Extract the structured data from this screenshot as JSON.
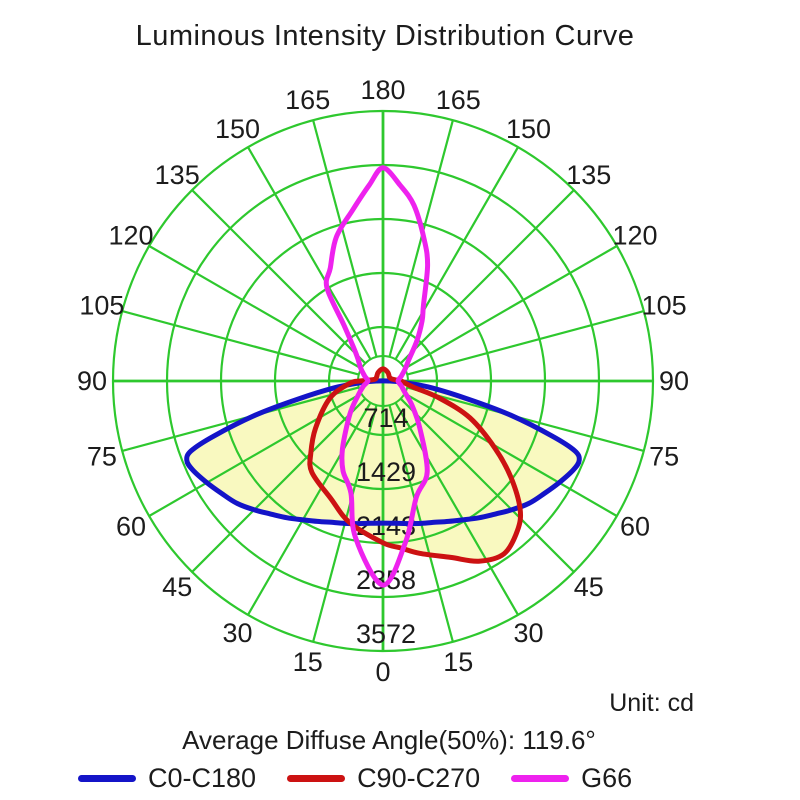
{
  "title": "Luminous Intensity Distribution Curve",
  "unit_label": "Unit: cd",
  "average_note": "Average Diffuse Angle(50%): 119.6°",
  "chart_data": {
    "type": "polar-line",
    "title": "Luminous Intensity Distribution Curve",
    "unit": "cd",
    "angle_convention": "0 deg at bottom (nadir), 90 deg horizontal both sides, 180 deg at top; positive angles = right half, negative = left half",
    "angle_tick_labels": [
      "0",
      "15",
      "30",
      "45",
      "60",
      "75",
      "90",
      "105",
      "120",
      "135",
      "150",
      "165",
      "180"
    ],
    "radial_ticks": [
      "714",
      "1429",
      "2143",
      "2858",
      "3572"
    ],
    "radial_tick_values": [
      714,
      1429,
      2143,
      2858,
      3572
    ],
    "radial_max": 3572,
    "grid_color": "#2ec82e",
    "fill_color": "#f9f9c0",
    "text_color": "#1c1c1c",
    "series": [
      {
        "name": "C0-C180",
        "color": "#1414c8",
        "filled": true,
        "points": [
          [
            -90,
            80
          ],
          [
            -86,
            280
          ],
          [
            -82,
            650
          ],
          [
            -78,
            1150
          ],
          [
            -75,
            1750
          ],
          [
            -72,
            2350
          ],
          [
            -70,
            2700
          ],
          [
            -68,
            2800
          ],
          [
            -65,
            2780
          ],
          [
            -60,
            2690
          ],
          [
            -55,
            2600
          ],
          [
            -50,
            2520
          ],
          [
            -45,
            2410
          ],
          [
            -40,
            2300
          ],
          [
            -35,
            2210
          ],
          [
            -30,
            2120
          ],
          [
            -25,
            2050
          ],
          [
            -20,
            1990
          ],
          [
            -15,
            1950
          ],
          [
            -10,
            1915
          ],
          [
            -5,
            1890
          ],
          [
            0,
            1880
          ],
          [
            5,
            1890
          ],
          [
            10,
            1915
          ],
          [
            15,
            1950
          ],
          [
            20,
            1990
          ],
          [
            25,
            2050
          ],
          [
            30,
            2120
          ],
          [
            35,
            2210
          ],
          [
            40,
            2300
          ],
          [
            45,
            2410
          ],
          [
            50,
            2520
          ],
          [
            55,
            2600
          ],
          [
            60,
            2690
          ],
          [
            65,
            2780
          ],
          [
            68,
            2800
          ],
          [
            70,
            2700
          ],
          [
            72,
            2350
          ],
          [
            75,
            1750
          ],
          [
            78,
            1150
          ],
          [
            82,
            650
          ],
          [
            86,
            280
          ],
          [
            90,
            80
          ]
        ]
      },
      {
        "name": "C90-C270",
        "color": "#cc1212",
        "filled": true,
        "points": [
          [
            180,
            160
          ],
          [
            -150,
            130
          ],
          [
            -120,
            100
          ],
          [
            -100,
            120
          ],
          [
            -90,
            300
          ],
          [
            -86,
            440
          ],
          [
            -72,
            740
          ],
          [
            -55,
            1090
          ],
          [
            -45,
            1350
          ],
          [
            -38,
            1530
          ],
          [
            -24,
            1700
          ],
          [
            -13,
            1930
          ],
          [
            0,
            2140
          ],
          [
            6,
            2220
          ],
          [
            12,
            2330
          ],
          [
            21,
            2500
          ],
          [
            28,
            2700
          ],
          [
            35,
            2790
          ],
          [
            42,
            2660
          ],
          [
            47,
            2480
          ],
          [
            53,
            2120
          ],
          [
            59,
            1730
          ],
          [
            67,
            1250
          ],
          [
            73,
            790
          ],
          [
            78,
            430
          ],
          [
            84,
            300
          ],
          [
            90,
            240
          ],
          [
            100,
            130
          ],
          [
            120,
            100
          ],
          [
            150,
            130
          ]
        ]
      },
      {
        "name": "G66",
        "color": "#ee22ee",
        "filled": false,
        "points": [
          [
            180,
            2820
          ],
          [
            175,
            2600
          ],
          [
            170,
            2360
          ],
          [
            164,
            1965
          ],
          [
            159,
            1645
          ],
          [
            152,
            1140
          ],
          [
            147,
            950
          ],
          [
            140,
            700
          ],
          [
            130,
            450
          ],
          [
            118,
            330
          ],
          [
            105,
            250
          ],
          [
            90,
            200
          ],
          [
            75,
            250
          ],
          [
            62,
            330
          ],
          [
            50,
            500
          ],
          [
            38,
            790
          ],
          [
            26,
            1335
          ],
          [
            16,
            1600
          ],
          [
            8,
            2150
          ],
          [
            0,
            2700
          ],
          [
            -10,
            2100
          ],
          [
            -16,
            1540
          ],
          [
            -24,
            1300
          ],
          [
            -31,
            1040
          ],
          [
            -45,
            620
          ],
          [
            -60,
            380
          ],
          [
            -75,
            270
          ],
          [
            -90,
            200
          ],
          [
            -105,
            250
          ],
          [
            -120,
            340
          ],
          [
            -135,
            500
          ],
          [
            -145,
            900
          ],
          [
            -149,
            1440
          ],
          [
            -155,
            1650
          ],
          [
            -162,
            2000
          ],
          [
            -170,
            2300
          ],
          [
            -176,
            2600
          ]
        ]
      }
    ],
    "layout_hints": {
      "grid": true,
      "rings": 5,
      "spoke_step_deg": 15,
      "legend_position": "bottom"
    }
  }
}
